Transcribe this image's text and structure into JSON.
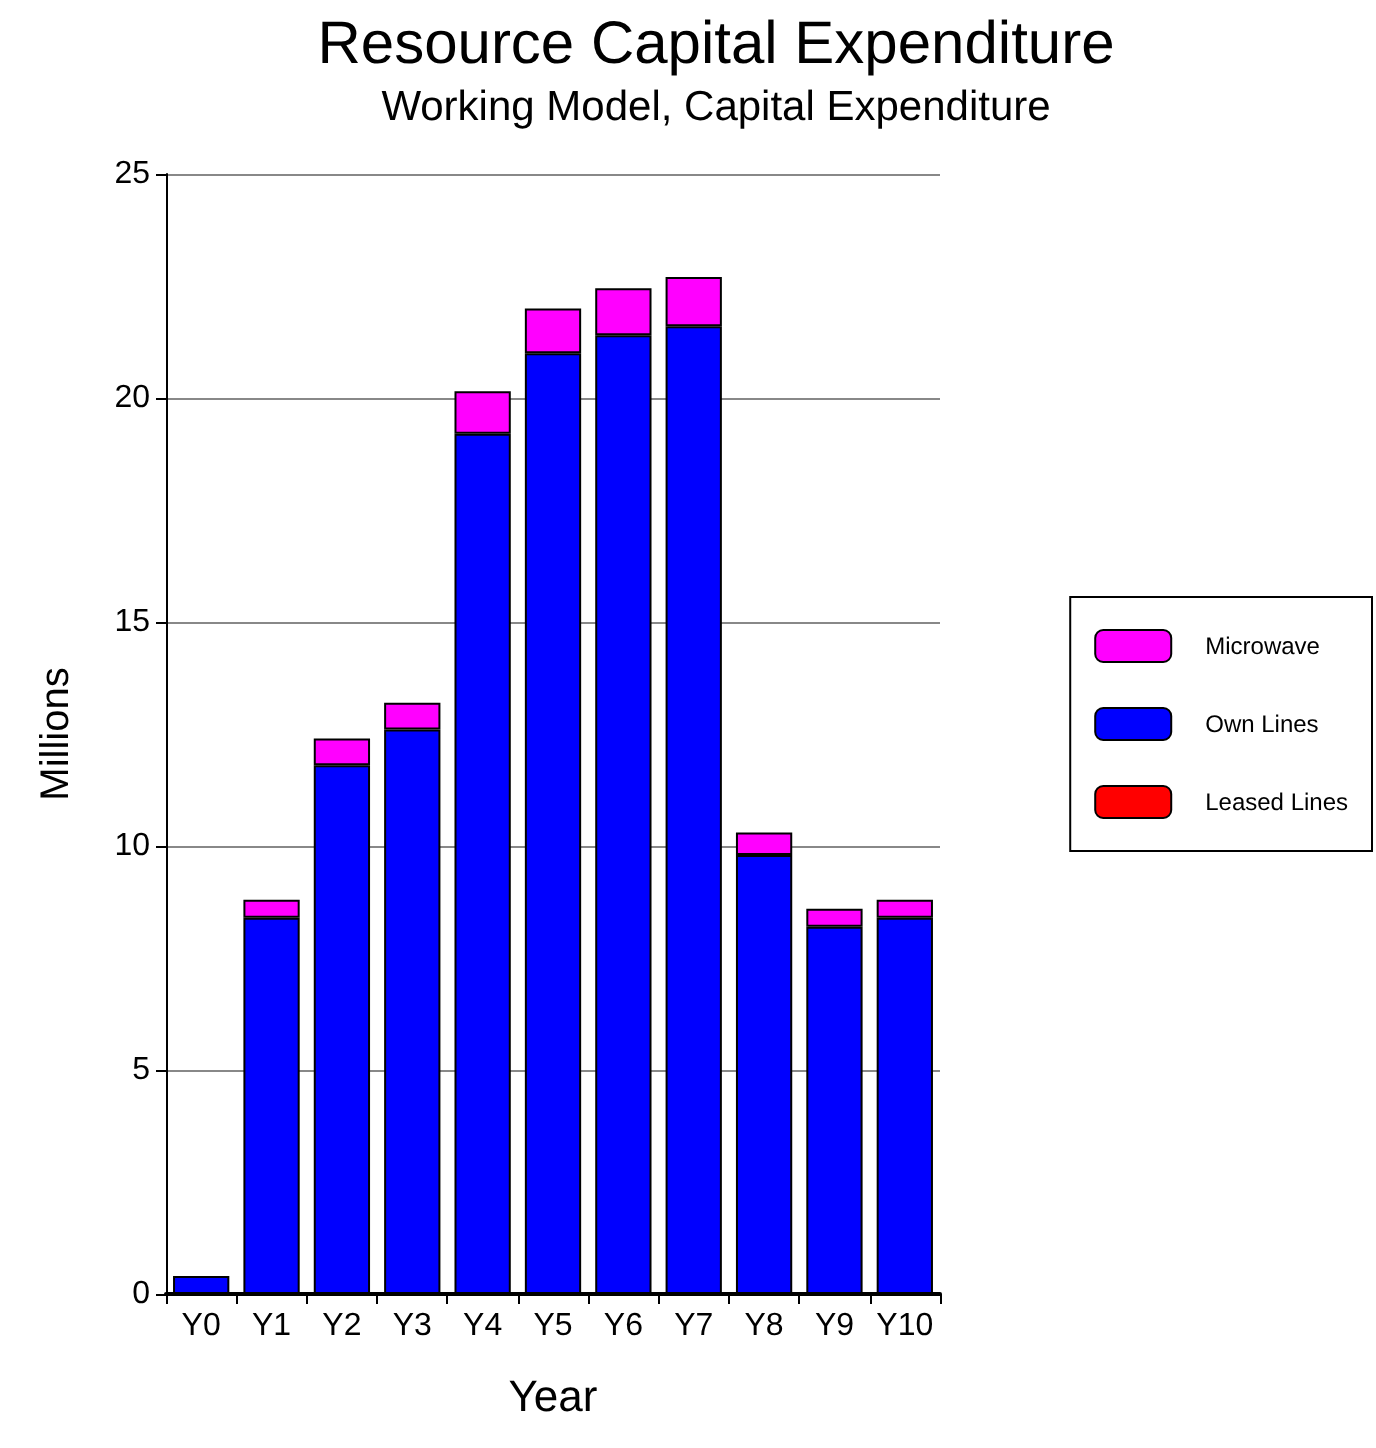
{
  "chart_data": {
    "type": "bar",
    "title": "Resource Capital Expenditure",
    "subtitle": "Working Model, Capital Expenditure",
    "xlabel": "Year",
    "ylabel": "Millions",
    "categories": [
      "Y0",
      "Y1",
      "Y2",
      "Y3",
      "Y4",
      "Y5",
      "Y6",
      "Y7",
      "Y8",
      "Y9",
      "Y10"
    ],
    "stacked": true,
    "ylim": [
      0,
      25
    ],
    "yticks": [
      0,
      5,
      10,
      15,
      20,
      25
    ],
    "grid": "y",
    "legend": "right",
    "series": [
      {
        "name": "Leased Lines",
        "color": "#ff0000",
        "values": [
          0,
          0,
          0,
          0,
          0,
          0,
          0,
          0,
          0,
          0,
          0
        ]
      },
      {
        "name": "Own Lines",
        "color": "#0000ff",
        "values": [
          0.4,
          8.4,
          11.8,
          12.6,
          19.2,
          21.0,
          21.4,
          21.6,
          9.8,
          8.2,
          8.4
        ]
      },
      {
        "name": "Microwave",
        "color": "#ff00ff",
        "values": [
          null,
          0.4,
          0.6,
          0.6,
          0.95,
          1.0,
          1.05,
          1.1,
          0.5,
          0.4,
          0.4
        ]
      }
    ]
  }
}
